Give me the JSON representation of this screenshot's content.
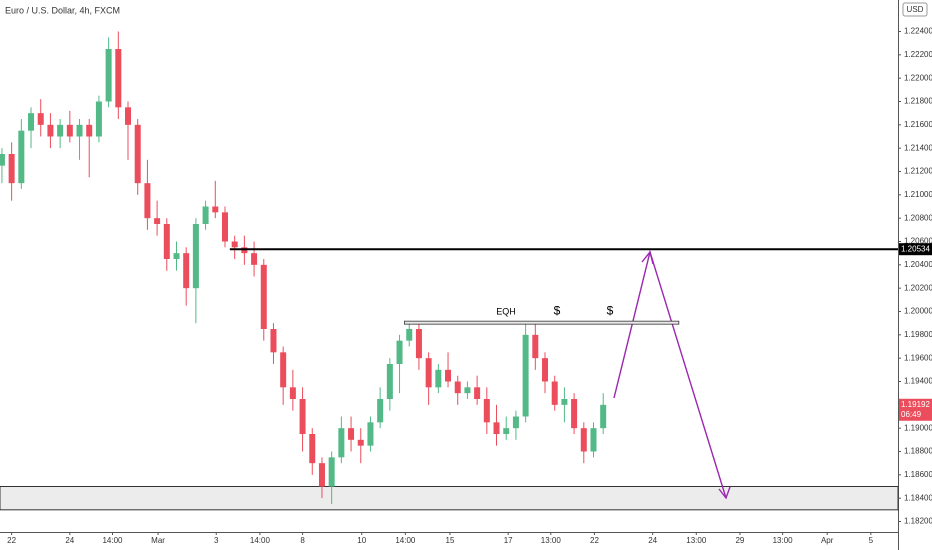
{
  "chart_data": {
    "type": "candlestick",
    "title": "Euro / U.S. Dollar, 4h, FXCM",
    "currency": "USD",
    "up_color": "#53b987",
    "down_color": "#eb4d5c",
    "candles": [
      [
        1.2125,
        1.214,
        1.211,
        1.2135
      ],
      [
        1.2135,
        1.2145,
        1.2095,
        1.211
      ],
      [
        1.211,
        1.2165,
        1.2105,
        1.2155
      ],
      [
        1.2155,
        1.2175,
        1.214,
        1.217
      ],
      [
        1.217,
        1.2182,
        1.215,
        1.216
      ],
      [
        1.216,
        1.217,
        1.214,
        1.215
      ],
      [
        1.215,
        1.2165,
        1.214,
        1.216
      ],
      [
        1.216,
        1.2172,
        1.2145,
        1.215
      ],
      [
        1.215,
        1.2165,
        1.213,
        1.216
      ],
      [
        1.216,
        1.2165,
        1.2115,
        1.215
      ],
      [
        1.215,
        1.2185,
        1.2145,
        1.218
      ],
      [
        1.218,
        1.2235,
        1.2175,
        1.2225
      ],
      [
        1.2225,
        1.224,
        1.2165,
        1.2175
      ],
      [
        1.2175,
        1.218,
        1.213,
        1.216
      ],
      [
        1.216,
        1.2165,
        1.21,
        1.211
      ],
      [
        1.211,
        1.213,
        1.207,
        1.208
      ],
      [
        1.208,
        1.2095,
        1.2065,
        1.2075
      ],
      [
        1.2075,
        1.208,
        1.2035,
        1.2045
      ],
      [
        1.2045,
        1.206,
        1.2035,
        1.205
      ],
      [
        1.205,
        1.2055,
        1.2005,
        1.202
      ],
      [
        1.202,
        1.208,
        1.199,
        1.2075
      ],
      [
        1.2075,
        1.2095,
        1.207,
        1.209
      ],
      [
        1.209,
        1.2112,
        1.208,
        1.2085
      ],
      [
        1.2085,
        1.209,
        1.2055,
        1.206
      ],
      [
        1.206,
        1.2065,
        1.2045,
        1.2055
      ],
      [
        1.2055,
        1.2065,
        1.204,
        1.205
      ],
      [
        1.205,
        1.206,
        1.203,
        1.204
      ],
      [
        1.204,
        1.2045,
        1.1975,
        1.1985
      ],
      [
        1.1985,
        1.199,
        1.1955,
        1.1965
      ],
      [
        1.1965,
        1.197,
        1.192,
        1.1935
      ],
      [
        1.1935,
        1.195,
        1.1915,
        1.1925
      ],
      [
        1.1925,
        1.1935,
        1.188,
        1.1895
      ],
      [
        1.1895,
        1.19,
        1.186,
        1.187
      ],
      [
        1.187,
        1.1875,
        1.184,
        1.185
      ],
      [
        1.185,
        1.188,
        1.1835,
        1.1875
      ],
      [
        1.1875,
        1.191,
        1.187,
        1.19
      ],
      [
        1.19,
        1.191,
        1.188,
        1.189
      ],
      [
        1.189,
        1.19,
        1.187,
        1.1885
      ],
      [
        1.1885,
        1.191,
        1.188,
        1.1905
      ],
      [
        1.1905,
        1.1935,
        1.19,
        1.1925
      ],
      [
        1.1925,
        1.196,
        1.1915,
        1.1955
      ],
      [
        1.1955,
        1.198,
        1.193,
        1.1975
      ],
      [
        1.1975,
        1.1992,
        1.197,
        1.1985
      ],
      [
        1.1985,
        1.199,
        1.195,
        1.196
      ],
      [
        1.196,
        1.1965,
        1.192,
        1.1935
      ],
      [
        1.1935,
        1.1955,
        1.193,
        1.195
      ],
      [
        1.195,
        1.1965,
        1.1935,
        1.194
      ],
      [
        1.194,
        1.1945,
        1.192,
        1.193
      ],
      [
        1.193,
        1.194,
        1.1925,
        1.1935
      ],
      [
        1.1935,
        1.1945,
        1.192,
        1.1925
      ],
      [
        1.1925,
        1.1935,
        1.1895,
        1.1905
      ],
      [
        1.1905,
        1.192,
        1.1885,
        1.1895
      ],
      [
        1.1895,
        1.191,
        1.189,
        1.19
      ],
      [
        1.19,
        1.1915,
        1.189,
        1.191
      ],
      [
        1.191,
        1.199,
        1.1905,
        1.198
      ],
      [
        1.198,
        1.199,
        1.195,
        1.196
      ],
      [
        1.196,
        1.1965,
        1.193,
        1.194
      ],
      [
        1.194,
        1.1945,
        1.1915,
        1.192
      ],
      [
        1.192,
        1.1935,
        1.1905,
        1.1925
      ],
      [
        1.1925,
        1.193,
        1.1895,
        1.19
      ],
      [
        1.19,
        1.1905,
        1.187,
        1.188
      ],
      [
        1.188,
        1.1905,
        1.1875,
        1.19
      ],
      [
        1.19,
        1.193,
        1.1895,
        1.192
      ]
    ],
    "ylim": [
      1.1811,
      1.2267
    ],
    "yticks": [
      {
        "value": 1.224,
        "label": "1.22400"
      },
      {
        "value": 1.222,
        "label": "1.22200"
      },
      {
        "value": 1.22,
        "label": "1.22000"
      },
      {
        "value": 1.218,
        "label": "1.21800"
      },
      {
        "value": 1.216,
        "label": "1.21600"
      },
      {
        "value": 1.214,
        "label": "1.21400"
      },
      {
        "value": 1.212,
        "label": "1.21200"
      },
      {
        "value": 1.21,
        "label": "1.21000"
      },
      {
        "value": 1.208,
        "label": "1.20800"
      },
      {
        "value": 1.206,
        "label": "1.20600"
      },
      {
        "value": 1.204,
        "label": "1.20400"
      },
      {
        "value": 1.202,
        "label": "1.20200"
      },
      {
        "value": 1.2,
        "label": "1.20000"
      },
      {
        "value": 1.198,
        "label": "1.19800"
      },
      {
        "value": 1.196,
        "label": "1.19600"
      },
      {
        "value": 1.194,
        "label": "1.19400"
      },
      {
        "value": 1.192,
        "label": "1.19200"
      },
      {
        "value": 1.19,
        "label": "1.19000"
      },
      {
        "value": 1.188,
        "label": "1.18800"
      },
      {
        "value": 1.186,
        "label": "1.18600"
      },
      {
        "value": 1.184,
        "label": "1.18400"
      },
      {
        "value": 1.182,
        "label": "1.18200"
      }
    ],
    "xlim": [
      -0.2,
      92.4
    ],
    "xticks": [
      {
        "value": 1.0,
        "label": "22"
      },
      {
        "value": 7.0,
        "label": "24"
      },
      {
        "value": 11.4,
        "label": "14:00"
      },
      {
        "value": 16.1,
        "label": "Mar"
      },
      {
        "value": 22.1,
        "label": "3"
      },
      {
        "value": 26.6,
        "label": "14:00"
      },
      {
        "value": 31.0,
        "label": "8"
      },
      {
        "value": 37.1,
        "label": "10"
      },
      {
        "value": 41.6,
        "label": "14:00"
      },
      {
        "value": 46.2,
        "label": "15"
      },
      {
        "value": 52.2,
        "label": "17"
      },
      {
        "value": 56.6,
        "label": "13:00"
      },
      {
        "value": 61.1,
        "label": "22"
      },
      {
        "value": 67.1,
        "label": "24"
      },
      {
        "value": 71.6,
        "label": "13:00"
      },
      {
        "value": 76.1,
        "label": "29"
      },
      {
        "value": 80.5,
        "label": "13:00"
      },
      {
        "value": 85.1,
        "label": "Apr"
      },
      {
        "value": 89.6,
        "label": "5"
      }
    ],
    "resistance": 1.20534,
    "eqh_level": 1.199,
    "eqh_label": "EQH",
    "liquidity_marks": [
      "$",
      "$"
    ],
    "demand_zone": [
      1.183,
      1.185
    ],
    "last_price": 1.19192,
    "countdown": "06:49"
  }
}
